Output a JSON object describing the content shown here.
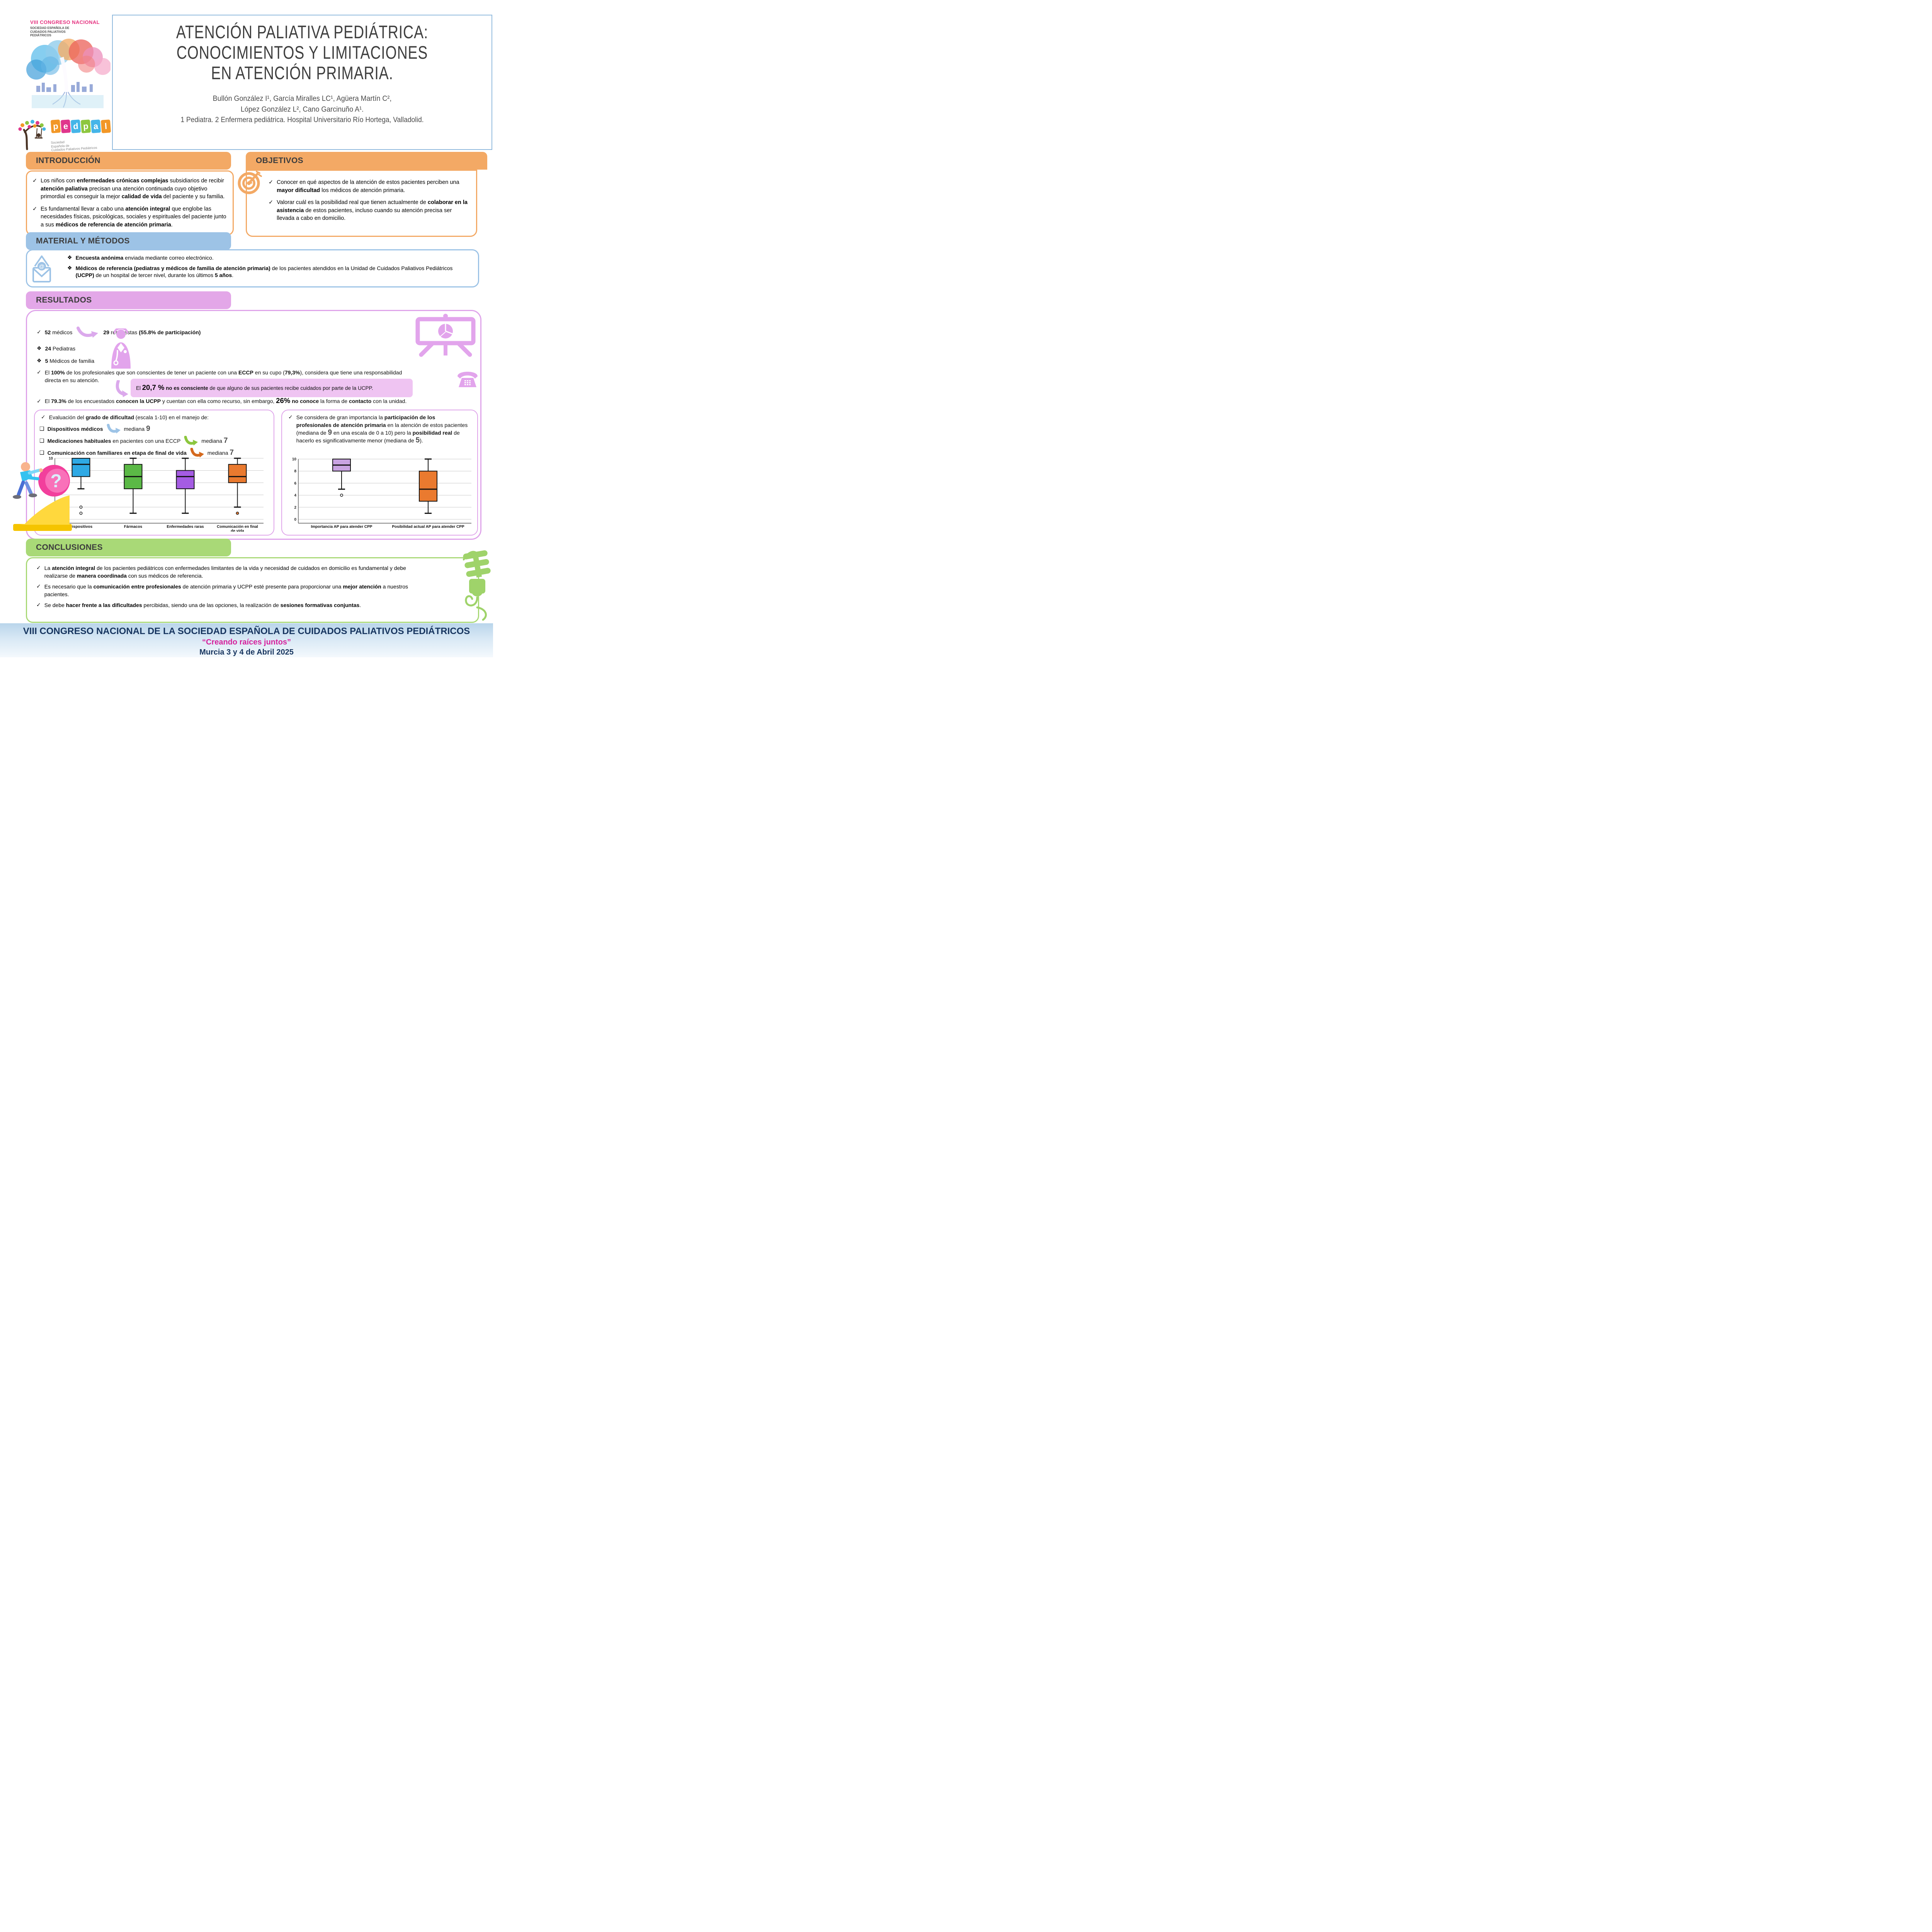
{
  "header": {
    "title_lines": [
      "ATENCIÓN PALIATIVA PEDIÁTRICA:",
      "CONOCIMIENTOS Y LIMITACIONES",
      "EN ATENCIÓN PRIMARIA."
    ],
    "authors_line1": "Bullón González I¹, García Miralles LC¹, Agüera Martín C²,",
    "authors_line2": "López González L², Cano Garcinuño A¹.",
    "affiliations": "1 Pediatra. 2 Enfermera pediátrica. Hospital Universitario Río Hortega, Valladolid."
  },
  "logos": {
    "congress": {
      "line1": "VIII CONGRESO NACIONAL",
      "line2": "SOCIEDAD ESPAÑOLA DE\nCUIDADOS PALIATIVOS\nPEDIÁTRICOS"
    },
    "pedpal": {
      "letters": [
        "p",
        "e",
        "d",
        "p",
        "a",
        "l"
      ],
      "block_colors": [
        "#f29727",
        "#e0368c",
        "#45b5e8",
        "#8dc63f",
        "#45b5e8",
        "#f29727"
      ],
      "subtitle": "Sociedad\nEspañola de\nCuidados Paliativos Pediátricos"
    }
  },
  "sections": {
    "introduccion": {
      "title": "INTRODUCCIÓN",
      "bullets": [
        {
          "mark": "✓",
          "segments": [
            {
              "t": "Los niños con "
            },
            {
              "t": "enfermedades crónicas complejas",
              "b": true
            },
            {
              "t": " subsidiarios de recibir "
            },
            {
              "t": "atención paliativa",
              "b": true
            },
            {
              "t": " precisan una atención continuada cuyo objetivo primordial es conseguir la mejor "
            },
            {
              "t": "calidad de vida",
              "b": true
            },
            {
              "t": " del paciente y su familia."
            }
          ]
        },
        {
          "mark": "✓",
          "segments": [
            {
              "t": "Es fundamental llevar a cabo una "
            },
            {
              "t": "atención integral",
              "b": true
            },
            {
              "t": " que englobe las necesidades físicas, psicológicas, sociales y espirituales del paciente junto a sus "
            },
            {
              "t": "médicos de referencia de atención primaria",
              "b": true
            },
            {
              "t": "."
            }
          ]
        }
      ]
    },
    "objetivos": {
      "title": "OBJETIVOS",
      "bullets": [
        {
          "mark": "✓",
          "segments": [
            {
              "t": "Conocer en qué aspectos de la atención de estos pacientes perciben una "
            },
            {
              "t": "mayor dificultad",
              "b": true
            },
            {
              "t": " los médicos de atención primaria."
            }
          ]
        },
        {
          "mark": "✓",
          "segments": [
            {
              "t": "Valorar cuál es la posibilidad real que tienen actualmente de "
            },
            {
              "t": "colaborar en la asistencia",
              "b": true
            },
            {
              "t": " de estos pacientes, incluso cuando su atención precisa ser llevada a cabo en domicilio."
            }
          ]
        }
      ]
    },
    "material": {
      "title": "MATERIAL Y MÉTODOS",
      "bullets": [
        {
          "mark": "❖",
          "segments": [
            {
              "t": "Encuesta anónima",
              "b": true
            },
            {
              "t": " enviada mediante correo electrónico."
            }
          ]
        },
        {
          "mark": "❖",
          "segments": [
            {
              "t": "Médicos de referencia (pediatras y médicos de familia de atención primaria)",
              "b": true
            },
            {
              "t": " de los pacientes atendidos en la Unidad de Cuidados Paliativos Pediátricos "
            },
            {
              "t": "(UCPP)",
              "b": true
            },
            {
              "t": " de un hospital de tercer nivel, durante los últimos "
            },
            {
              "t": "5 años",
              "b": true
            },
            {
              "t": "."
            }
          ]
        }
      ]
    },
    "resultados": {
      "title": "RESULTADOS",
      "line_a_mark": "✓",
      "line_a_left": [
        {
          "t": "52",
          "b": true
        },
        {
          "t": " médicos"
        }
      ],
      "line_a_right": [
        {
          "t": "29",
          "b": true
        },
        {
          "t": " respuestas "
        },
        {
          "t": "(55.8% de participación)",
          "b": true
        }
      ],
      "line_b": {
        "mark": "❖",
        "segments": [
          {
            "t": "24",
            "b": true
          },
          {
            "t": "  Pediatras"
          }
        ]
      },
      "line_c": {
        "mark": "❖",
        "segments": [
          {
            "t": " 5",
            "b": true
          },
          {
            "t": "   Médicos de familia"
          }
        ]
      },
      "line_d": {
        "mark": "✓",
        "segments": [
          {
            "t": "El "
          },
          {
            "t": "100%",
            "b": true
          },
          {
            "t": " de los profesionales que son conscientes de tener un paciente con una "
          },
          {
            "t": "ECCP",
            "b": true
          },
          {
            "t": " en su cupo ("
          },
          {
            "t": "79,3%",
            "b": true
          },
          {
            "t": "), considera que tiene una responsabilidad directa en su atención."
          }
        ]
      },
      "pink_box": [
        {
          "t": "El "
        },
        {
          "t": "20,7 %",
          "xl": true
        },
        {
          "t": " "
        },
        {
          "t": "no es consciente",
          "b": true
        },
        {
          "t": " de que alguno de sus pacientes recibe cuidados por parte de la UCPP."
        }
      ],
      "line_e": {
        "mark": "✓",
        "segments": [
          {
            "t": "El "
          },
          {
            "t": "79.3%",
            "b": true
          },
          {
            "t": " de los encuestados "
          },
          {
            "t": "conocen la UCPP",
            "b": true
          },
          {
            "t": " y cuentan con ella como recurso, sin embargo, "
          },
          {
            "t": "26%",
            "xl": true
          },
          {
            "t": " "
          },
          {
            "t": "no conoce",
            "b": true
          },
          {
            "t": " la forma de "
          },
          {
            "t": "contacto",
            "b": true
          },
          {
            "t": " con la unidad."
          }
        ]
      },
      "left_panel": {
        "head_mark": "✓",
        "head": [
          {
            "t": "  Evaluación del "
          },
          {
            "t": "grado de dificultad",
            "b": true
          },
          {
            "t": " (escala 1-10) en el manejo de:"
          }
        ],
        "item1": [
          {
            "t": "Dispositivos médicos",
            "b": true
          }
        ],
        "item1_median": [
          {
            "t": "mediana "
          },
          {
            "t": "9",
            "big": true
          }
        ],
        "item2": [
          {
            "t": "Medicaciones habituales",
            "b": true
          },
          {
            "t": " en pacientes con una ECCP"
          }
        ],
        "item2_median": [
          {
            "t": "mediana "
          },
          {
            "t": "7",
            "big": true
          }
        ],
        "item3": [
          {
            "t": "Comunicación con familiares en etapa de final de vida",
            "b": true
          }
        ],
        "item3_median": [
          {
            "t": "mediana "
          },
          {
            "t": "7",
            "big": true
          }
        ],
        "item_mark": "❑"
      },
      "right_panel": {
        "mark": "✓",
        "segments": [
          {
            "t": "Se considera de gran importancia la "
          },
          {
            "t": "participación de los profesionales de atención primaria",
            "b": true
          },
          {
            "t": " en la atención de estos pacientes (mediana de "
          },
          {
            "t": "9",
            "big": true
          },
          {
            "t": " en una escala de 0 a 10) pero la "
          },
          {
            "t": "posibilidad real",
            "b": true
          },
          {
            "t": "  de hacerlo es significativamente menor (mediana de "
          },
          {
            "t": "5",
            "big": true
          },
          {
            "t": ")."
          }
        ]
      }
    },
    "conclusiones": {
      "title": "CONCLUSIONES",
      "bullets": [
        {
          "mark": "✓",
          "segments": [
            {
              "t": "La "
            },
            {
              "t": "atención integral",
              "b": true
            },
            {
              "t": " de los pacientes pediátricos con enfermedades limitantes de la vida y necesidad de cuidados en domicilio es fundamental y debe realizarse de "
            },
            {
              "t": "manera coordinada",
              "b": true
            },
            {
              "t": " con sus médicos de referencia."
            }
          ]
        },
        {
          "mark": "✓",
          "segments": [
            {
              "t": "Es necesario que la "
            },
            {
              "t": "comunicación entre profesionales",
              "b": true
            },
            {
              "t": " de atención primaria y UCPP esté presente para proporcionar una "
            },
            {
              "t": "mejor atención",
              "b": true
            },
            {
              "t": " a nuestros pacientes."
            }
          ]
        },
        {
          "mark": "✓",
          "segments": [
            {
              "t": "Se debe "
            },
            {
              "t": "hacer frente a las dificultades",
              "b": true
            },
            {
              "t": " percibidas, siendo una de las opciones, la realización de "
            },
            {
              "t": "sesiones formativas conjuntas",
              "b": true
            },
            {
              "t": "."
            }
          ]
        }
      ]
    }
  },
  "footer": {
    "line1": "VIII CONGRESO NACIONAL DE LA SOCIEDAD ESPAÑOLA DE CUIDADOS PALIATIVOS PEDIÁTRICOS",
    "line2": "“Creando raíces juntos”",
    "line3": "Murcia 3 y 4 de Abril 2025"
  },
  "colors": {
    "orange_section": "#f3a965",
    "blue_section": "#9dc3e6",
    "violet_section": "#e3a7e8",
    "green_section": "#a9d977",
    "pink_highlight": "#efc4f2",
    "footer_navy": "#17355f",
    "footer_pink": "#d6219c"
  },
  "icons": {
    "check-mark": "✓",
    "diamond-bullet": "❖",
    "square-bullet": "❑",
    "target-icon": "dartboard with arrow (objetivos)",
    "envelope-icon": "open envelope with @ (encuesta por email)",
    "presentation-icon": "easel board with pie chart",
    "doctor-icon": "physician with stethoscope",
    "phone-icon": "telephone",
    "question-illustration": "person pushing pink question ball uphill",
    "lightbulb-icon": "green CFL bulb"
  },
  "chart_data": [
    {
      "type": "boxplot",
      "title": "",
      "xlabel": "",
      "ylabel": "",
      "ylim": [
        0,
        10
      ],
      "yticks": [
        0,
        2,
        4,
        6,
        8,
        10
      ],
      "grid": true,
      "categories": [
        "Dispositivos",
        "Fármacos",
        "Enfermedades raras",
        "Comunicación en final\nde vida"
      ],
      "series": [
        {
          "name": "Dispositivos",
          "q1": 7,
          "median": 9,
          "q3": 10,
          "whisker_low": 5,
          "whisker_high": 10,
          "outliers": [
            2,
            1
          ],
          "color": "#2ea9e5"
        },
        {
          "name": "Fármacos",
          "q1": 5,
          "median": 7,
          "q3": 9,
          "whisker_low": 1,
          "whisker_high": 10,
          "outliers": [],
          "color": "#5bb946"
        },
        {
          "name": "Enfermedades raras",
          "q1": 5,
          "median": 7,
          "q3": 8,
          "whisker_low": 1,
          "whisker_high": 10,
          "outliers": [],
          "color": "#a55ce3"
        },
        {
          "name": "Comunicación en final\nde vida",
          "q1": 6,
          "median": 7,
          "q3": 9,
          "whisker_low": 2,
          "whisker_high": 10,
          "outliers": [
            1
          ],
          "outlier_fill": "#ea7a2f",
          "color": "#ea7a2f"
        }
      ]
    },
    {
      "type": "boxplot",
      "title": "",
      "xlabel": "",
      "ylabel": "",
      "ylim": [
        0,
        10
      ],
      "yticks": [
        0,
        2,
        4,
        6,
        8,
        10
      ],
      "grid": true,
      "categories": [
        "Importancia AP para atender CPP",
        "Posibilidad actual AP para atender CPP"
      ],
      "series": [
        {
          "name": "Importancia AP para atender CPP",
          "q1": 8,
          "median": 9,
          "q3": 10,
          "whisker_low": 5,
          "whisker_high": 10,
          "outliers": [
            4
          ],
          "color": "#c9a3e2"
        },
        {
          "name": "Posibilidad actual AP para atender CPP",
          "q1": 3,
          "median": 5,
          "q3": 8,
          "whisker_low": 1,
          "whisker_high": 10,
          "outliers": [],
          "color": "#ea7a2f"
        }
      ]
    }
  ]
}
